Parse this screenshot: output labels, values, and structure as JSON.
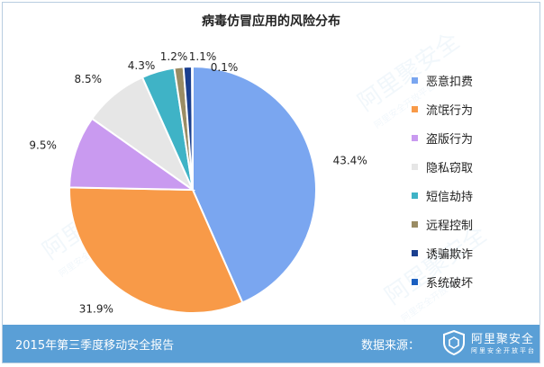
{
  "chart_data": {
    "type": "pie",
    "title": "病毒仿冒应用的风险分布",
    "categories": [
      "恶意扣费",
      "流氓行为",
      "盗版行为",
      "隐私窃取",
      "短信劫持",
      "远程控制",
      "诱骗欺诈",
      "系统破坏"
    ],
    "values": [
      43.4,
      31.9,
      9.5,
      8.5,
      4.3,
      1.2,
      1.1,
      0.1
    ],
    "value_labels": [
      "43.4%",
      "31.9%",
      "9.5%",
      "8.5%",
      "4.3%",
      "1.2%",
      "1.1%",
      "0.1%"
    ],
    "colors": [
      "#7aa6f0",
      "#f89a48",
      "#c99af0",
      "#e6e6e6",
      "#3fb3c6",
      "#9a8c64",
      "#1a3f8f",
      "#1a5fc0"
    ],
    "legend_position": "right"
  },
  "footer": {
    "report": "2015年第三季度移动安全报告",
    "source_label": "数据来源：",
    "brand": "阿里聚安全",
    "brand_sub": "阿里安全开放平台"
  },
  "watermark": {
    "text": "阿里聚安全",
    "sub": "阿里安全开放平台"
  }
}
